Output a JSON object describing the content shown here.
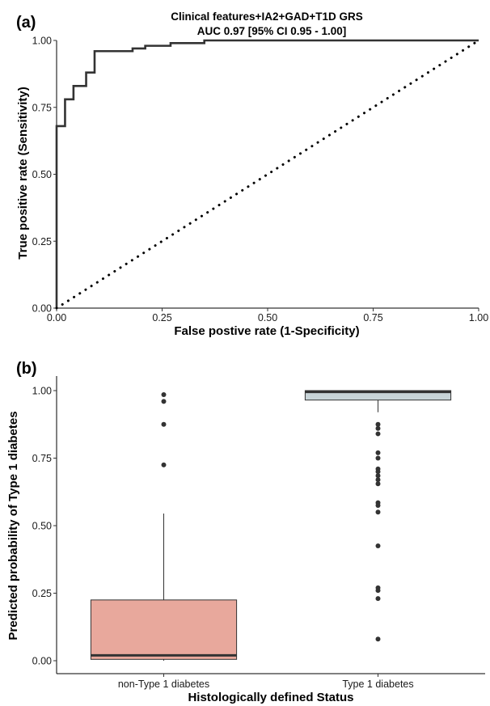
{
  "chart_data": [
    {
      "type": "line",
      "panel_label": "(a)",
      "title": "Clinical features+IA2+GAD+T1D GRS",
      "subtitle": "AUC 0.97 [95% CI 0.95 - 1.00]",
      "xlabel": "False postive rate (1-Specificity)",
      "ylabel": "True positive rate (Sensitivity)",
      "xlim": [
        0,
        1
      ],
      "ylim": [
        0,
        1
      ],
      "x_ticks": [
        "0.00",
        "0.25",
        "0.50",
        "0.75",
        "1.00"
      ],
      "y_ticks": [
        "0.00",
        "0.25",
        "0.50",
        "0.75",
        "1.00"
      ],
      "grid": false,
      "series": [
        {
          "style": "solid",
          "color": "#333333",
          "x": [
            0,
            0,
            0.02,
            0.02,
            0.04,
            0.04,
            0.07,
            0.07,
            0.09,
            0.09,
            0.18,
            0.18,
            0.21,
            0.21,
            0.27,
            0.27,
            0.35,
            0.35,
            1.0
          ],
          "y": [
            0,
            0.68,
            0.68,
            0.78,
            0.78,
            0.83,
            0.83,
            0.88,
            0.88,
            0.96,
            0.96,
            0.97,
            0.97,
            0.98,
            0.98,
            0.99,
            0.99,
            1.0,
            1.0
          ]
        },
        {
          "style": "dotted",
          "color": "#000000",
          "x": [
            0,
            1
          ],
          "y": [
            0,
            1
          ]
        }
      ]
    },
    {
      "type": "box",
      "panel_label": "(b)",
      "xlabel": "Histologically defined Status",
      "ylabel": "Predicted probability of Type 1 diabetes",
      "categories": [
        "non-Type 1 diabetes",
        "Type 1 diabetes"
      ],
      "ylim": [
        0,
        1
      ],
      "y_ticks": [
        "0.00",
        "0.25",
        "0.50",
        "0.75",
        "1.00"
      ],
      "grid": false,
      "boxes": [
        {
          "category": "non-Type 1 diabetes",
          "fill": "#e8a89c",
          "whisker_low": 0.0,
          "q1": 0.005,
          "median": 0.02,
          "q3": 0.225,
          "whisker_high": 0.545,
          "outliers": [
            0.725,
            0.875,
            0.96,
            0.985
          ]
        },
        {
          "category": "Type 1 diabetes",
          "fill": "#c8d4d8",
          "whisker_low": 0.92,
          "q1": 0.965,
          "median": 0.995,
          "q3": 1.0,
          "whisker_high": 1.0,
          "outliers": [
            0.875,
            0.86,
            0.84,
            0.77,
            0.75,
            0.71,
            0.7,
            0.685,
            0.67,
            0.655,
            0.585,
            0.575,
            0.55,
            0.425,
            0.27,
            0.26,
            0.23,
            0.08
          ]
        }
      ]
    }
  ]
}
